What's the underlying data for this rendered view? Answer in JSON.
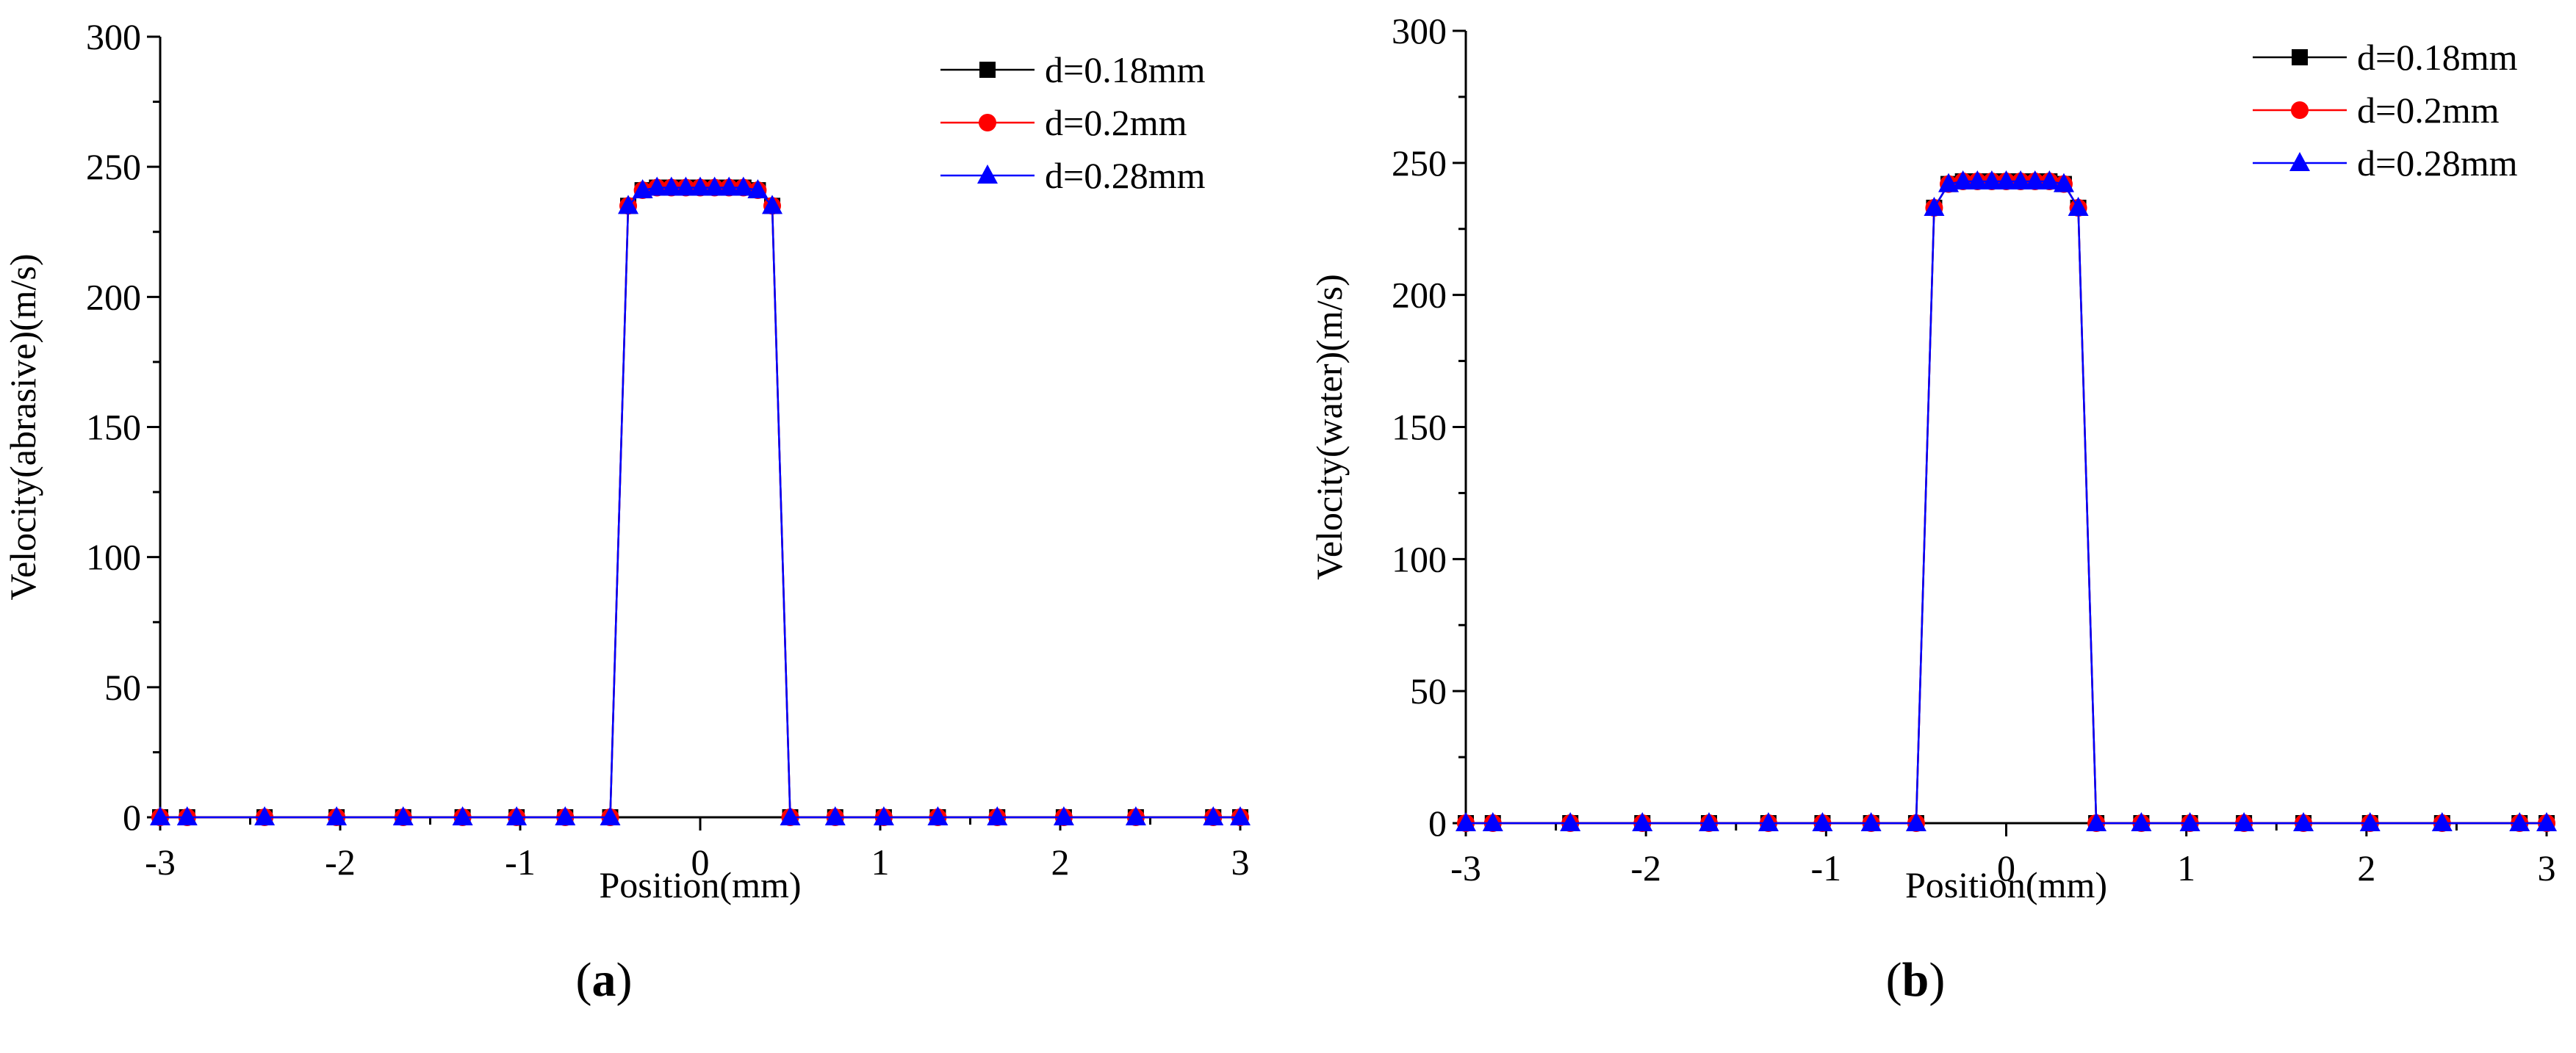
{
  "chart_data": [
    {
      "type": "line",
      "panel_label": "(a)",
      "panel_letter": "a",
      "xlabel": "Position(mm)",
      "ylabel": "Velocity(abrasive)(m/s)",
      "xlim": [
        -3,
        3
      ],
      "ylim": [
        0,
        300
      ],
      "x_ticks": [
        -3,
        -2,
        -1,
        0,
        1,
        2,
        3
      ],
      "y_ticks": [
        0,
        50,
        100,
        150,
        200,
        250,
        300
      ],
      "x": [
        -3.0,
        -2.85,
        -2.42,
        -2.02,
        -1.65,
        -1.32,
        -1.02,
        -0.75,
        -0.5,
        -0.4,
        -0.32,
        -0.24,
        -0.16,
        -0.08,
        0.0,
        0.08,
        0.16,
        0.24,
        0.32,
        0.4,
        0.5,
        0.75,
        1.02,
        1.32,
        1.65,
        2.02,
        2.42,
        2.85,
        3.0
      ],
      "legend_position": "top-right",
      "series": [
        {
          "name": "d=0.18mm",
          "color": "#000000",
          "marker": "square",
          "values": [
            0,
            0,
            0,
            0,
            0,
            0,
            0,
            0,
            0,
            235,
            241,
            242,
            242,
            242,
            242,
            242,
            242,
            242,
            241,
            235,
            0,
            0,
            0,
            0,
            0,
            0,
            0,
            0,
            0
          ]
        },
        {
          "name": "d=0.2mm",
          "color": "#ff0000",
          "marker": "circle",
          "values": [
            0,
            0,
            0,
            0,
            0,
            0,
            0,
            0,
            0,
            235,
            241,
            242,
            242,
            242,
            242,
            242,
            242,
            242,
            241,
            235,
            0,
            0,
            0,
            0,
            0,
            0,
            0,
            0,
            0
          ]
        },
        {
          "name": "d=0.28mm",
          "color": "#0000ff",
          "marker": "triangle",
          "values": [
            0,
            0,
            0,
            0,
            0,
            0,
            0,
            0,
            0,
            235,
            241,
            242,
            242,
            242,
            242,
            242,
            242,
            242,
            241,
            235,
            0,
            0,
            0,
            0,
            0,
            0,
            0,
            0,
            0
          ]
        }
      ]
    },
    {
      "type": "line",
      "panel_label": "(b)",
      "panel_letter": "b",
      "xlabel": "Position(mm)",
      "ylabel": "Velocity(water)(m/s)",
      "xlim": [
        -3,
        3
      ],
      "ylim": [
        0,
        300
      ],
      "x_ticks": [
        -3,
        -2,
        -1,
        0,
        1,
        2,
        3
      ],
      "y_ticks": [
        0,
        50,
        100,
        150,
        200,
        250,
        300
      ],
      "x": [
        -3.0,
        -2.85,
        -2.42,
        -2.02,
        -1.65,
        -1.32,
        -1.02,
        -0.75,
        -0.5,
        -0.4,
        -0.32,
        -0.24,
        -0.16,
        -0.08,
        0.0,
        0.08,
        0.16,
        0.24,
        0.32,
        0.4,
        0.5,
        0.75,
        1.02,
        1.32,
        1.65,
        2.02,
        2.42,
        2.85,
        3.0
      ],
      "legend_position": "top-right",
      "series": [
        {
          "name": "d=0.18mm",
          "color": "#000000",
          "marker": "square",
          "values": [
            0,
            0,
            0,
            0,
            0,
            0,
            0,
            0,
            0,
            233,
            242,
            243,
            243,
            243,
            243,
            243,
            243,
            243,
            242,
            233,
            0,
            0,
            0,
            0,
            0,
            0,
            0,
            0,
            0
          ]
        },
        {
          "name": "d=0.2mm",
          "color": "#ff0000",
          "marker": "circle",
          "values": [
            0,
            0,
            0,
            0,
            0,
            0,
            0,
            0,
            0,
            233,
            242,
            243,
            243,
            243,
            243,
            243,
            243,
            243,
            242,
            233,
            0,
            0,
            0,
            0,
            0,
            0,
            0,
            0,
            0
          ]
        },
        {
          "name": "d=0.28mm",
          "color": "#0000ff",
          "marker": "triangle",
          "values": [
            0,
            0,
            0,
            0,
            0,
            0,
            0,
            0,
            0,
            233,
            242,
            243,
            243,
            243,
            243,
            243,
            243,
            243,
            242,
            233,
            0,
            0,
            0,
            0,
            0,
            0,
            0,
            0,
            0
          ]
        }
      ]
    }
  ]
}
